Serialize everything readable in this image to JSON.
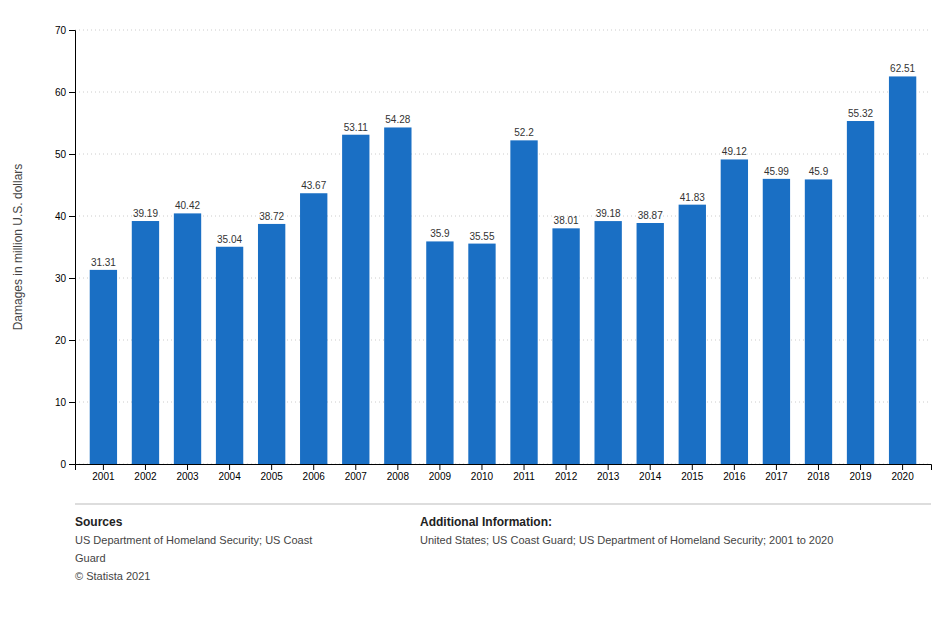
{
  "chart_data": {
    "type": "bar",
    "categories": [
      "2001",
      "2002",
      "2003",
      "2004",
      "2005",
      "2006",
      "2007",
      "2008",
      "2009",
      "2010",
      "2011",
      "2012",
      "2013",
      "2014",
      "2015",
      "2016",
      "2017",
      "2018",
      "2019",
      "2020"
    ],
    "values": [
      31.31,
      39.19,
      40.42,
      35.04,
      38.72,
      43.67,
      53.11,
      54.28,
      35.9,
      35.55,
      52.2,
      38.01,
      39.18,
      38.87,
      41.83,
      49.12,
      45.99,
      45.9,
      55.32,
      62.51
    ],
    "color": "#1a6fc4",
    "y_label": "Damages in million U.S. dollars",
    "ylim": [
      0,
      70
    ],
    "yticks": [
      0,
      10,
      20,
      30,
      40,
      50,
      60,
      70
    ],
    "grid": true,
    "data_labels": true,
    "annotations": [
      "Sources",
      "US Department of Homeland Security; US Coast",
      "Guard",
      "© Statista 2021",
      "Additional Information:",
      "United States; US Coast Guard; US Department of Homeland Security; 2001 to 2020"
    ]
  }
}
